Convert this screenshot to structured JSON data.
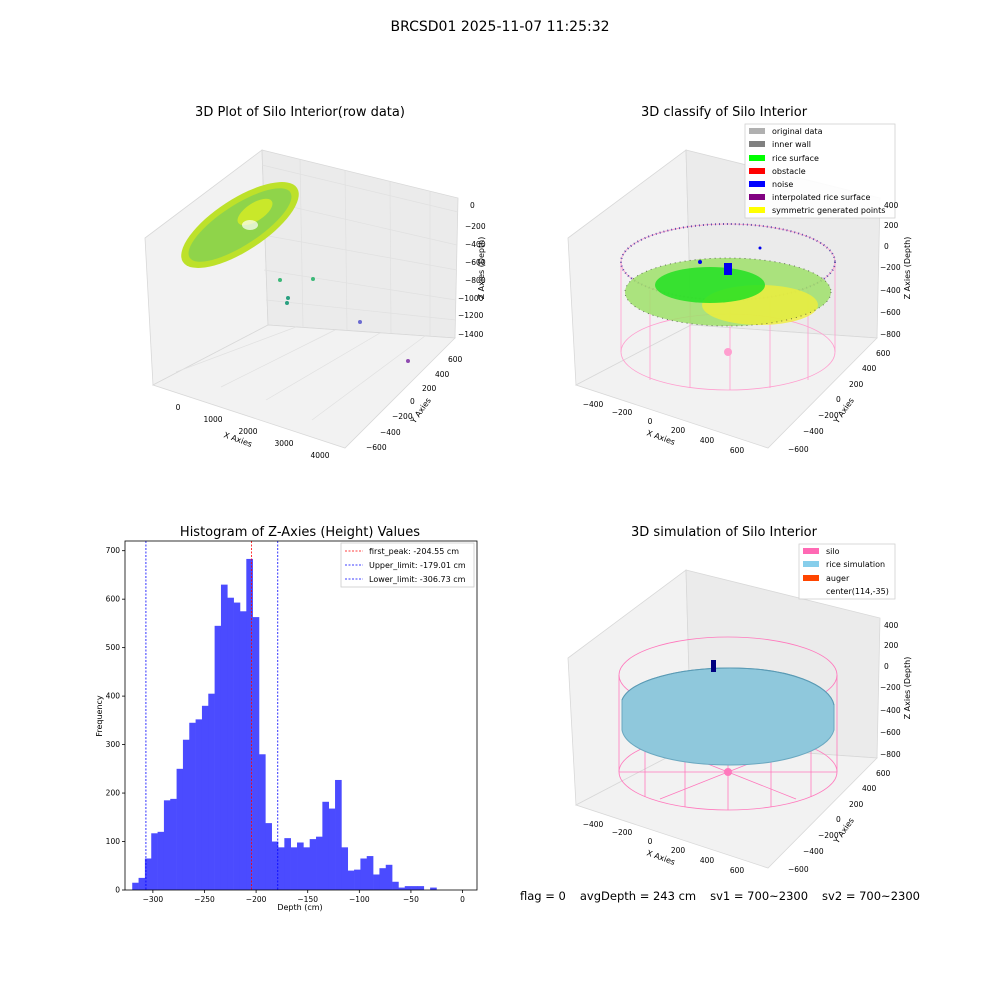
{
  "figure": {
    "title": "BRCSD01 2025-11-07 11:25:32"
  },
  "panels": {
    "raw": {
      "title": "3D Plot of Silo Interior(row data)",
      "xlabel": "X Axies",
      "ylabel": "Y Axies",
      "zlabel": "Z Axies (Depth)",
      "xticks": [
        "0",
        "1000",
        "2000",
        "3000",
        "4000"
      ],
      "yticks": [
        "600",
        "400",
        "200",
        "0",
        "−200",
        "−400",
        "−600"
      ],
      "zticks": [
        "0",
        "−200",
        "−400",
        "−600",
        "−800",
        "−1000",
        "−1200",
        "−1400"
      ]
    },
    "classify": {
      "title": "3D classify of Silo Interior",
      "xlabel": "X Axies",
      "ylabel": "Y Axies",
      "zlabel": "Z Axies (Depth)",
      "xticks": [
        "−400",
        "−200",
        "0",
        "200",
        "400",
        "600"
      ],
      "yticks": [
        "600",
        "400",
        "200",
        "0",
        "−200",
        "−400",
        "−600"
      ],
      "zticks": [
        "400",
        "200",
        "0",
        "−200",
        "−400",
        "−600",
        "−800"
      ],
      "legend": [
        {
          "label": "original data",
          "color": "#b0b0b0"
        },
        {
          "label": "inner wall",
          "color": "#808080"
        },
        {
          "label": "rice surface",
          "color": "#00ff00"
        },
        {
          "label": "obstacle",
          "color": "#ff0000"
        },
        {
          "label": "noise",
          "color": "#0000ff"
        },
        {
          "label": "interpolated rice surface",
          "color": "#800080"
        },
        {
          "label": "symmetric generated points",
          "color": "#ffff00"
        }
      ]
    },
    "simulation": {
      "title": "3D simulation of Silo Interior",
      "xlabel": "X Axies",
      "ylabel": "Y Axies",
      "zlabel": "Z Axies (Depth)",
      "xticks": [
        "−400",
        "−200",
        "0",
        "200",
        "400",
        "600"
      ],
      "yticks": [
        "600",
        "400",
        "200",
        "0",
        "−200",
        "−400",
        "−600"
      ],
      "zticks": [
        "400",
        "200",
        "0",
        "−200",
        "−400",
        "−600",
        "−800"
      ],
      "legend": [
        {
          "label": "silo",
          "color": "#ff69b4"
        },
        {
          "label": "rice simulation",
          "color": "#87ceeb"
        },
        {
          "label": "auger",
          "color": "#ff4500"
        },
        {
          "label": "center(114,-35)",
          "color": ""
        }
      ]
    }
  },
  "chart_data": [
    {
      "type": "bar",
      "title": "Histogram of Z-Axies (Height) Values",
      "xlabel": "Depth (cm)",
      "ylabel": "Frequency",
      "xlim": [
        -327,
        14
      ],
      "ylim": [
        0,
        720
      ],
      "xticks": [
        -300,
        -250,
        -200,
        -150,
        -100,
        -50,
        0
      ],
      "xtick_labels": [
        "−300",
        "−250",
        "−200",
        "−150",
        "−100",
        "−50",
        "0"
      ],
      "yticks": [
        0,
        100,
        200,
        300,
        400,
        500,
        600,
        700
      ],
      "bar_color": "#4b4bff",
      "bin_width": 6.14,
      "bin_start": -320,
      "counts": [
        15,
        25,
        65,
        117,
        120,
        185,
        188,
        250,
        310,
        345,
        352,
        380,
        405,
        545,
        630,
        603,
        593,
        575,
        683,
        563,
        280,
        138,
        100,
        88,
        107,
        88,
        98,
        88,
        105,
        110,
        182,
        168,
        227,
        88,
        40,
        42,
        65,
        70,
        32,
        45,
        52,
        17,
        5,
        8,
        8,
        8,
        0,
        5
      ],
      "vlines": [
        {
          "x": -204.55,
          "color": "#ff0000",
          "label": "first_peak: -204.55 cm"
        },
        {
          "x": -179.01,
          "color": "#0000ff",
          "label": "Upper_limit: -179.01 cm"
        },
        {
          "x": -306.73,
          "color": "#0000ff",
          "label": "Lower_limit: -306.73 cm"
        }
      ],
      "legend_position": "top-right",
      "grid": false
    }
  ],
  "footer": {
    "flag": "flag = 0",
    "avg": "avgDepth = 243 cm",
    "sv1": "sv1 = 700~2300",
    "sv2": "sv2 = 700~2300"
  }
}
